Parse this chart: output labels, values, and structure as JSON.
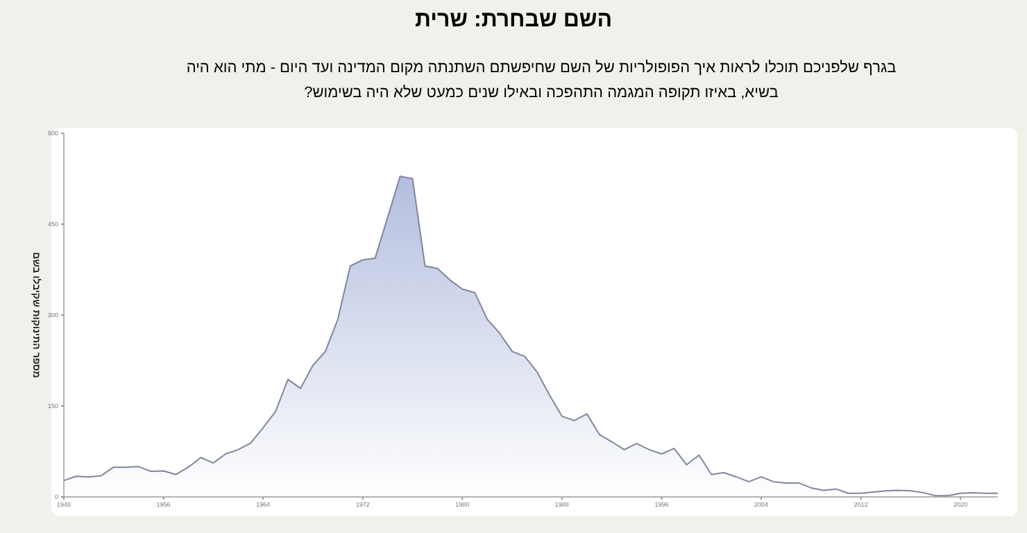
{
  "chart_data": {
    "type": "area",
    "title": "השם שבחרת: **שרית**",
    "subtitle": "בגרף שלפניכם תוכלו לראות איך הפופולריות של השם שחיפשתם השתנתה מקום המדינה ועד היום - מתי הוא היה בשיא, באיזו תקופה המגמה התהפכה ובאילו שנים כמעט שלא היה בשימוש?",
    "ylabel": "מספר התינוקות שקיבלו בשם",
    "x": [
      1948,
      1949,
      1950,
      1951,
      1952,
      1953,
      1954,
      1955,
      1956,
      1957,
      1958,
      1959,
      1960,
      1961,
      1962,
      1963,
      1964,
      1965,
      1966,
      1967,
      1968,
      1969,
      1970,
      1971,
      1972,
      1973,
      1974,
      1975,
      1976,
      1977,
      1978,
      1979,
      1980,
      1981,
      1982,
      1983,
      1984,
      1985,
      1986,
      1987,
      1988,
      1989,
      1990,
      1991,
      1992,
      1993,
      1994,
      1995,
      1996,
      1997,
      1998,
      1999,
      2000,
      2001,
      2002,
      2003,
      2004,
      2005,
      2006,
      2007,
      2008,
      2009,
      2010,
      2011,
      2012,
      2013,
      2014,
      2015,
      2016,
      2017,
      2018,
      2019,
      2020,
      2021,
      2022,
      2023
    ],
    "values": [
      27,
      34,
      33,
      35,
      49,
      49,
      50,
      42,
      43,
      37,
      49,
      65,
      56,
      71,
      78,
      89,
      114,
      141,
      194,
      179,
      217,
      240,
      293,
      381,
      391,
      394,
      461,
      529,
      525,
      381,
      377,
      358,
      343,
      337,
      293,
      270,
      240,
      232,
      206,
      168,
      133,
      126,
      137,
      103,
      91,
      78,
      88,
      78,
      71,
      80,
      53,
      69,
      37,
      40,
      33,
      25,
      33,
      25,
      23,
      23,
      15,
      11,
      13,
      6,
      6,
      8,
      10,
      11,
      10,
      7,
      2,
      2,
      6,
      7,
      6,
      6
    ],
    "color": "#b3bedf",
    "xlim": [
      1948,
      2023
    ],
    "ylim": [
      0,
      600
    ],
    "xticks": [
      1948,
      1956,
      1964,
      1972,
      1980,
      1988,
      1996,
      2004,
      2012,
      2020
    ],
    "yticks": [
      0,
      150,
      300,
      450,
      600
    ],
    "grid": false,
    "marker": "none",
    "line_style": "solid"
  }
}
